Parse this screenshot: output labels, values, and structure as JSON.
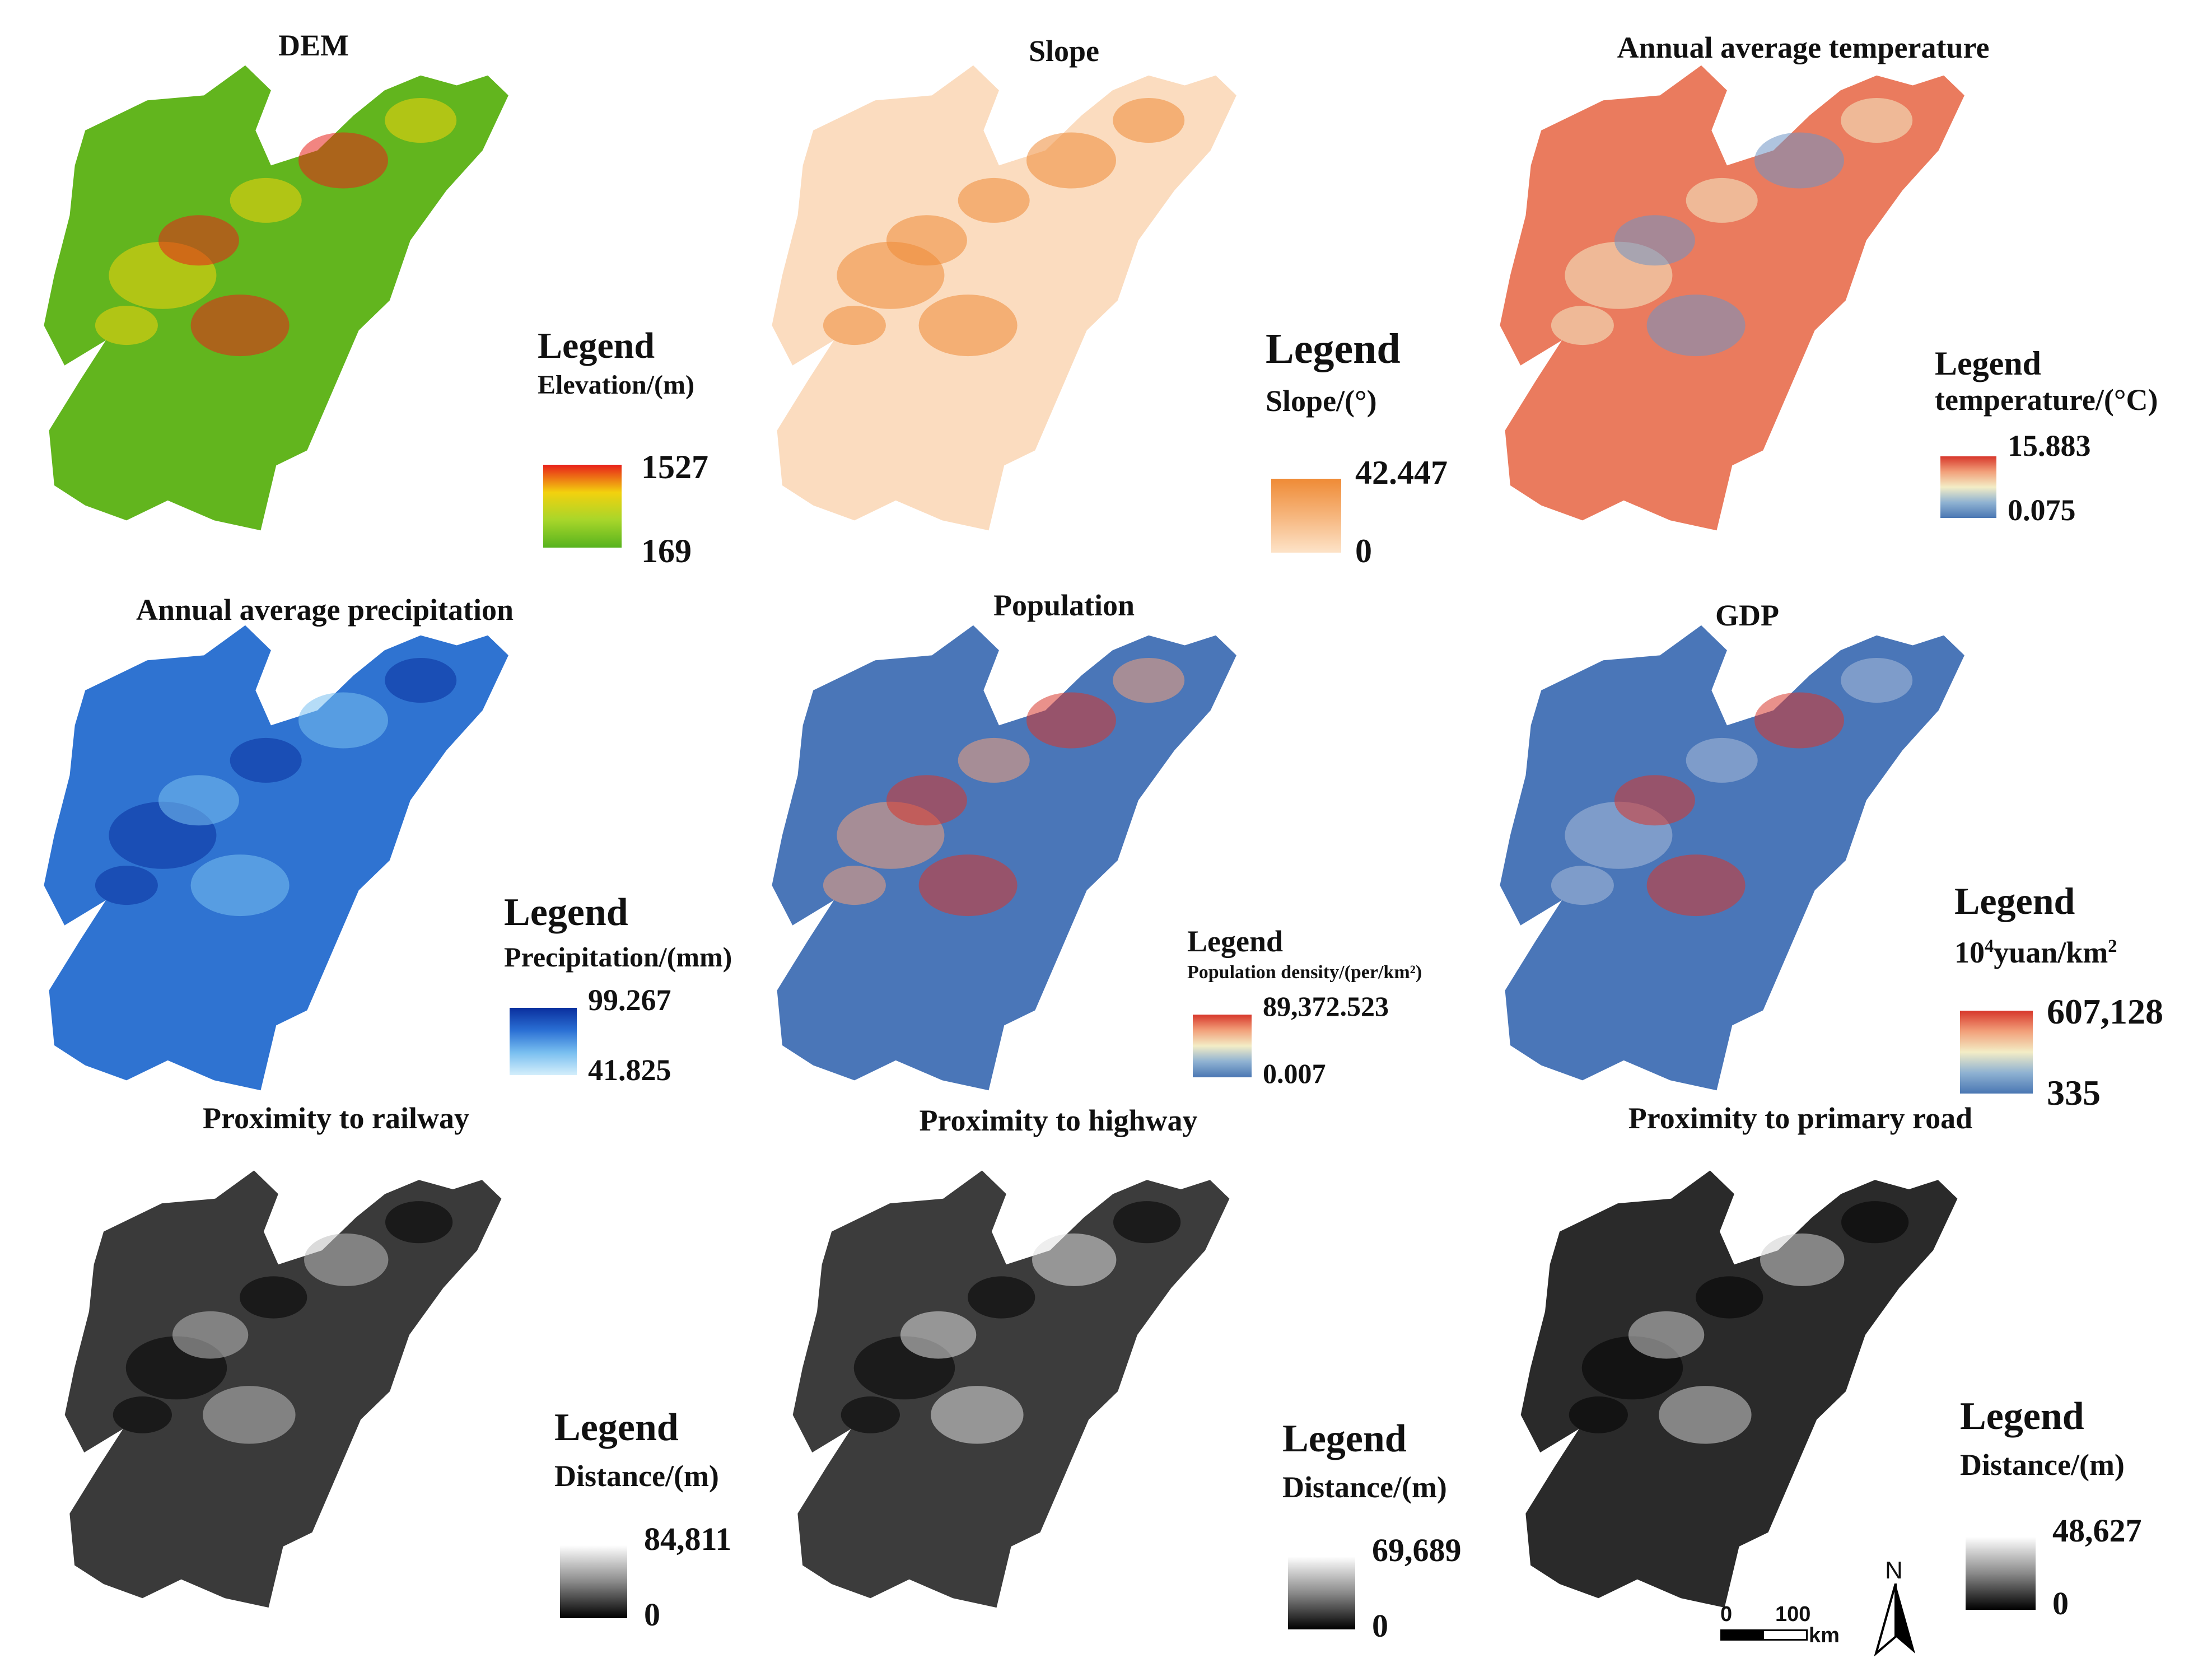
{
  "panels": [
    {
      "id": "dem",
      "title": "DEM",
      "legend_heading": "Legend",
      "unit": "Elevation/(m)",
      "max": "1527",
      "min": "169",
      "colors": [
        "#e8201a",
        "#f3d10e",
        "#a8d62a",
        "#57b31e"
      ],
      "map_base": "#62b51e"
    },
    {
      "id": "slope",
      "title": "Slope",
      "legend_heading": "Legend",
      "unit": "Slope/(°)",
      "max": "42.447",
      "min": "0",
      "colors": [
        "#ef8b36",
        "#f6b57c",
        "#fde3c8"
      ],
      "map_base": "#fbdcbf"
    },
    {
      "id": "temperature",
      "title": "Annual average temperature",
      "legend_heading": "Legend",
      "unit": "temperature/(°C)",
      "max": "15.883",
      "min": "0.075",
      "colors": [
        "#d7372b",
        "#f2a07a",
        "#f3edc6",
        "#8fb2d2",
        "#4a77b3"
      ],
      "map_base": "#ea7b5e"
    },
    {
      "id": "precipitation",
      "title": "Annual average precipitation",
      "legend_heading": "Legend",
      "unit": "Precipitation/(mm)",
      "max": "99.267",
      "min": "41.825",
      "colors": [
        "#0a2f9e",
        "#2a6fd4",
        "#79bff0",
        "#d4eefb"
      ],
      "map_base": "#2f73d1"
    },
    {
      "id": "population",
      "title": "Population",
      "legend_heading": "Legend",
      "unit": "Population density/(per/km²)",
      "max": "89,372.523",
      "min": "0.007",
      "colors": [
        "#d7372b",
        "#f2a07a",
        "#f3edc6",
        "#8fb2d2",
        "#4a77b3"
      ],
      "map_base": "#4a76b8"
    },
    {
      "id": "gdp",
      "title": "GDP",
      "legend_heading": "Legend",
      "unit_base": "10",
      "unit_sup": "4",
      "unit_mid": "yuan/km",
      "unit_sup2": "2",
      "max": "607,128",
      "min": "335",
      "colors": [
        "#d7372b",
        "#f2a07a",
        "#f3edc6",
        "#8fb2d2",
        "#4a77b3"
      ],
      "map_base": "#4a76b8"
    },
    {
      "id": "railway",
      "title": "Proximity to railway",
      "legend_heading": "Legend",
      "unit": "Distance/(m)",
      "max": "84,811",
      "min": "0",
      "colors": [
        "#ffffff",
        "#8a8a8a",
        "#000000"
      ],
      "map_base": "#3a3a3a"
    },
    {
      "id": "highway",
      "title": "Proximity to highway",
      "legend_heading": "Legend",
      "unit": "Distance/(m)",
      "max": "69,689",
      "min": "0",
      "colors": [
        "#ffffff",
        "#8a8a8a",
        "#000000"
      ],
      "map_base": "#3c3c3c"
    },
    {
      "id": "primary_road",
      "title": "Proximity to primary road",
      "legend_heading": "Legend",
      "unit": "Distance/(m)",
      "max": "48,627",
      "min": "0",
      "colors": [
        "#ffffff",
        "#8a8a8a",
        "#000000"
      ],
      "map_base": "#2a2a2a"
    }
  ],
  "scale_bar": {
    "start": "0",
    "end": "100",
    "unit": "km"
  },
  "north_arrow": {
    "label": "N",
    "icon": "north-arrow-icon"
  }
}
